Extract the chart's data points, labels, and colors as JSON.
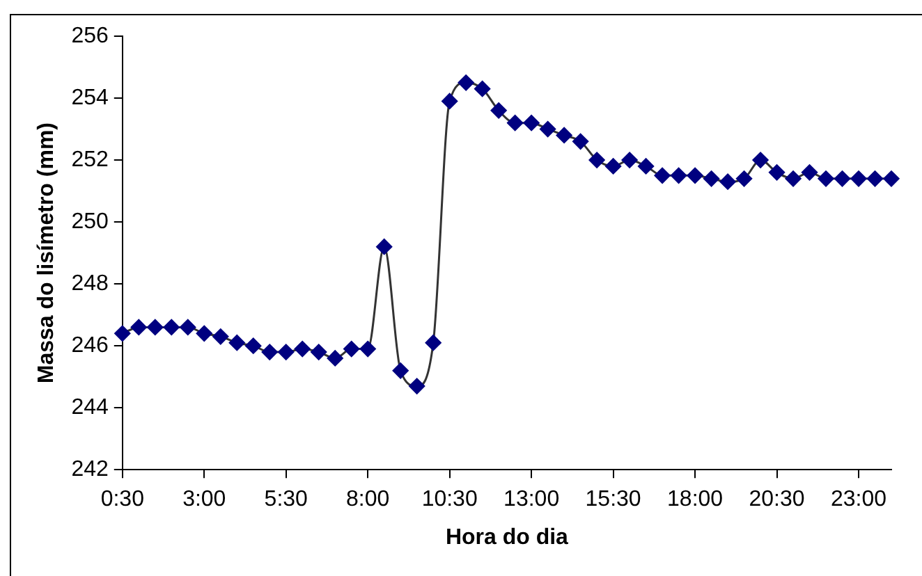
{
  "chart_data": {
    "type": "line",
    "xlabel": "Hora do dia",
    "ylabel": "Massa do lisímetro (mm)",
    "categories": [
      "0:30",
      null,
      null,
      null,
      null,
      "3:00",
      null,
      null,
      null,
      null,
      "5:30",
      null,
      null,
      null,
      null,
      "8:00",
      null,
      null,
      null,
      null,
      "10:30",
      null,
      null,
      null,
      null,
      "13:00",
      null,
      null,
      null,
      null,
      "15:30",
      null,
      null,
      null,
      null,
      "18:00",
      null,
      null,
      null,
      null,
      "20:30",
      null,
      null,
      null,
      null,
      "23:00",
      null,
      null
    ],
    "series": [
      {
        "color": "#000080",
        "values": [
          246.4,
          246.6,
          246.6,
          246.6,
          246.6,
          246.4,
          246.3,
          246.1,
          246.0,
          245.8,
          245.8,
          245.9,
          245.8,
          245.6,
          245.9,
          245.9,
          249.2,
          245.2,
          244.7,
          246.1,
          253.9,
          254.5,
          254.3,
          253.6,
          253.2,
          253.2,
          253.0,
          252.8,
          252.6,
          252.0,
          251.8,
          252.0,
          251.8,
          251.5,
          251.5,
          251.5,
          251.4,
          251.3,
          251.4,
          252.0,
          251.6,
          251.4,
          251.6,
          251.4,
          251.4,
          251.4,
          251.4,
          251.4
        ]
      }
    ],
    "ylim": [
      242,
      256
    ],
    "yticks": [
      242,
      244,
      246,
      248,
      250,
      252,
      254,
      256
    ],
    "grid": false,
    "legend": false,
    "marker": "diamond",
    "line_style": "solid"
  }
}
